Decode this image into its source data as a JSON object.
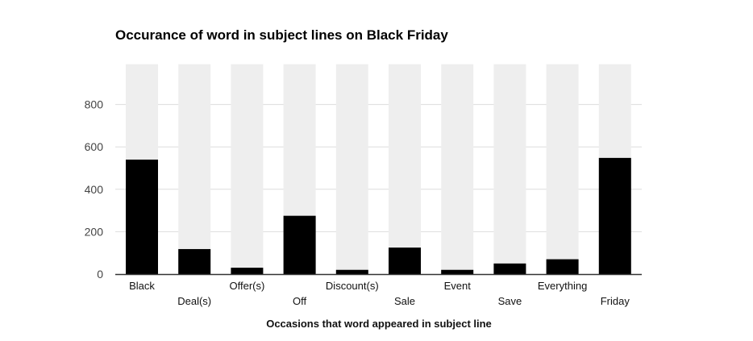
{
  "chart_data": {
    "type": "bar",
    "title": "Occurance of word in subject lines on Black Friday",
    "xlabel": "Occasions that word appeared in subject line",
    "ylabel": "",
    "categories": [
      "Black",
      "Deal(s)",
      "Offer(s)",
      "Off",
      "Discount(s)",
      "Sale",
      "Event",
      "Save",
      "Everything",
      "Friday"
    ],
    "values": [
      540,
      118,
      30,
      275,
      20,
      125,
      20,
      50,
      70,
      548
    ],
    "background_bar_max": 990,
    "ylim": [
      0,
      990
    ],
    "yticks": [
      0,
      200,
      400,
      600,
      800
    ],
    "ytick_labels": [
      "0",
      "200",
      "400",
      "600",
      "800"
    ],
    "grid": true,
    "legend": "none",
    "colors": {
      "bar": "#000000",
      "background_bar": "#eeeeee",
      "grid": "#dddddd",
      "axis": "#333333"
    }
  }
}
